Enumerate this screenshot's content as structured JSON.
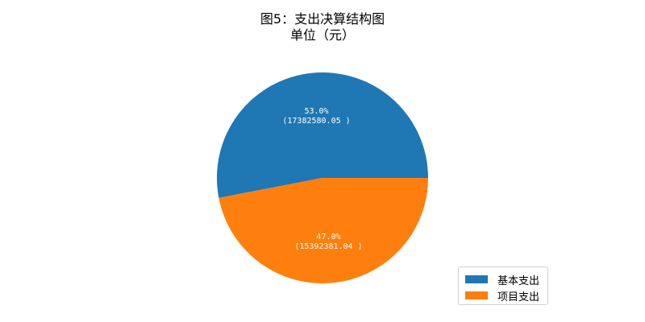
{
  "chart_data": {
    "type": "pie",
    "title": "图5：支出决算结构图",
    "subtitle": "单位（元）",
    "slices": [
      {
        "label": "基本支出",
        "value": 17382580.05,
        "percent_label": "53.0%",
        "value_label": "(17382580.05 )",
        "color": "#1f77b4"
      },
      {
        "label": "项目支出",
        "value": 15392381.04,
        "percent_label": "47.0%",
        "value_label": "(15392381.04 )",
        "color": "#ff7f0e"
      }
    ],
    "start_angle_deg": 0,
    "direction": "counterclockwise",
    "legend_position": "lower-right"
  }
}
